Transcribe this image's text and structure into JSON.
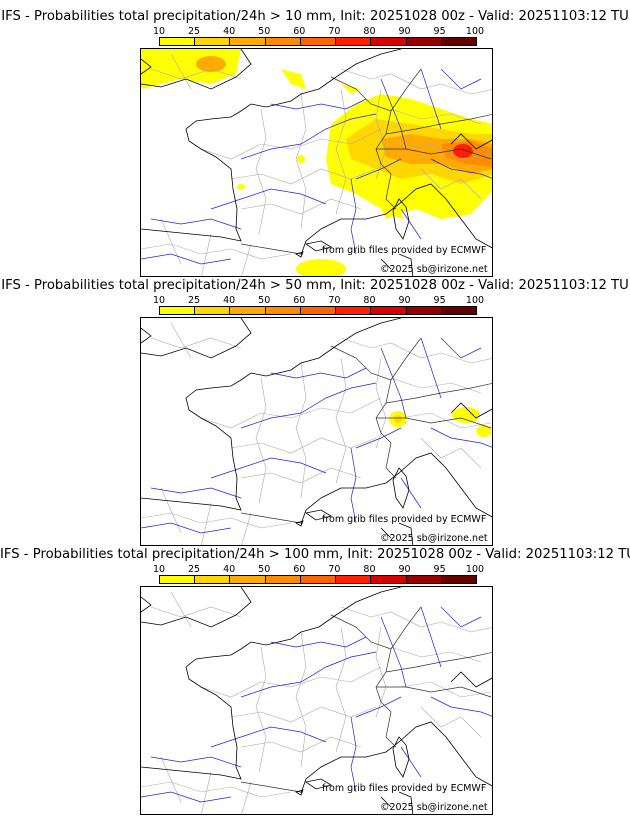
{
  "colorbar": {
    "ticks": [
      "10",
      "25",
      "40",
      "50",
      "60",
      "70",
      "80",
      "90",
      "95",
      "100"
    ],
    "colors": [
      "#ffff00",
      "#ffd700",
      "#ffaa00",
      "#ff8c00",
      "#ff6400",
      "#ff2000",
      "#d80000",
      "#980000",
      "#640000"
    ]
  },
  "map_colors": {
    "coast": "#000000",
    "rivers": "#2222dd",
    "borders": "#aaaaaa"
  },
  "panels": [
    {
      "title": "IFS - Probabilities total precipitation/24h > 10 mm, Init: 20251028 00z - Valid: 20251103:12 TU",
      "credit_source": "from grib files provided by ECMWF",
      "credit_copyright": "©2025 sb@irizone.net"
    },
    {
      "title": "IFS - Probabilities total precipitation/24h > 50 mm, Init: 20251028 00z - Valid: 20251103:12 TU",
      "credit_source": "from grib files provided by ECMWF",
      "credit_copyright": "©2025 sb@irizone.net"
    },
    {
      "title": "IFS - Probabilities total precipitation/24h > 100 mm, Init: 20251028 00z - Valid: 20251103:12 TU",
      "credit_source": "from grib files provided by ECMWF",
      "credit_copyright": "©2025 sb@irizone.net"
    }
  ]
}
